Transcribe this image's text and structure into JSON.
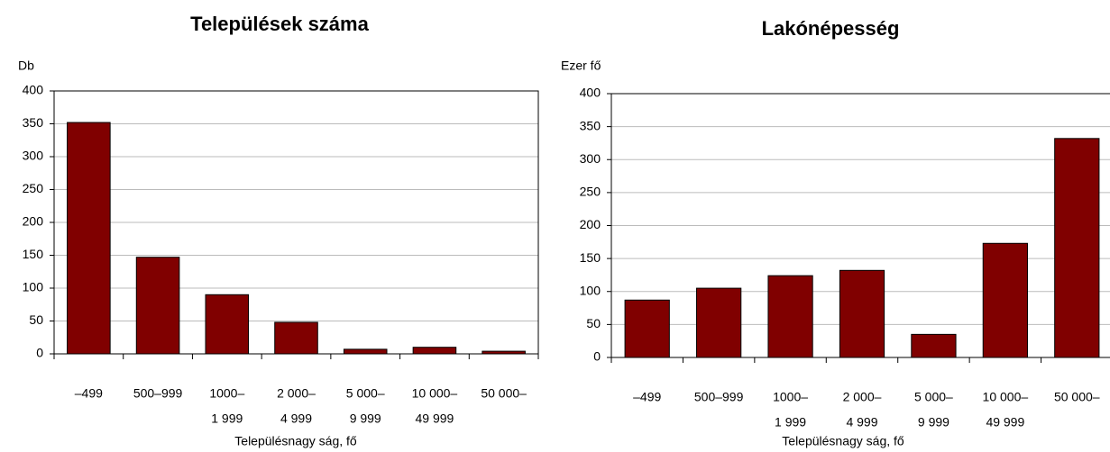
{
  "chart_data": [
    {
      "type": "bar",
      "title": "Települések száma",
      "y_label": "Db",
      "x_label": "Településnagy ság, fő",
      "categories": [
        [
          "–499"
        ],
        [
          "500–999"
        ],
        [
          "1000–",
          "1 999"
        ],
        [
          "2 000–",
          "4 999"
        ],
        [
          "5 000–",
          "9 999"
        ],
        [
          "10 000–",
          "49 999"
        ],
        [
          "50 000–"
        ]
      ],
      "values": [
        352,
        147,
        90,
        48,
        7,
        10,
        4
      ],
      "color": "#800000",
      "ylim": [
        0,
        400
      ],
      "yticks": [
        0,
        50,
        100,
        150,
        200,
        250,
        300,
        350,
        400
      ],
      "grid": true
    },
    {
      "type": "bar",
      "title": "Lakónépesség",
      "y_label": "Ezer fő",
      "x_label": "Településnagy ság, fő",
      "categories": [
        [
          "–499"
        ],
        [
          "500–999"
        ],
        [
          "1000–",
          "1 999"
        ],
        [
          "2 000–",
          "4 999"
        ],
        [
          "5 000–",
          "9 999"
        ],
        [
          "10 000–",
          "49 999"
        ],
        [
          "50 000–"
        ]
      ],
      "values": [
        87,
        105,
        124,
        132,
        35,
        173,
        332
      ],
      "color": "#800000",
      "ylim": [
        0,
        400
      ],
      "yticks": [
        0,
        50,
        100,
        150,
        200,
        250,
        300,
        350,
        400
      ],
      "grid": true
    }
  ]
}
